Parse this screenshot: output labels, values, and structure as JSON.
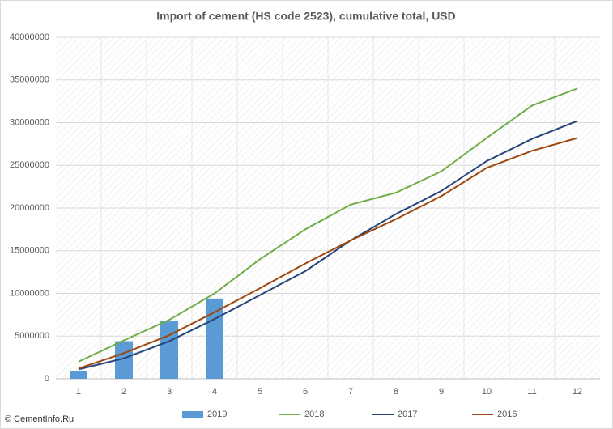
{
  "chart_data": {
    "type": "combo",
    "title": "Import of cement (HS code 2523), cumulative total, USD",
    "watermark": "© CementInfo.Ru",
    "categories": [
      "1",
      "2",
      "3",
      "4",
      "5",
      "6",
      "7",
      "8",
      "9",
      "10",
      "11",
      "12"
    ],
    "ylim": [
      0,
      40000000
    ],
    "yticks": [
      0,
      5000000,
      10000000,
      15000000,
      20000000,
      25000000,
      30000000,
      35000000,
      40000000
    ],
    "grid": true,
    "legend": "bottom",
    "series": [
      {
        "name": "2019",
        "type": "bar",
        "color": "#5b9bd5",
        "values": [
          950000,
          4400000,
          6800000,
          9400000,
          null,
          null,
          null,
          null,
          null,
          null,
          null,
          null
        ]
      },
      {
        "name": "2018",
        "type": "line",
        "color": "#70ad47",
        "values": [
          2000000,
          4500000,
          6900000,
          10000000,
          14000000,
          17500000,
          20400000,
          21800000,
          24300000,
          28200000,
          32000000,
          34000000
        ]
      },
      {
        "name": "2017",
        "type": "line",
        "color": "#264478",
        "values": [
          1100000,
          2400000,
          4400000,
          7000000,
          9800000,
          12600000,
          16200000,
          19300000,
          22000000,
          25500000,
          28100000,
          30200000
        ]
      },
      {
        "name": "2016",
        "type": "line",
        "color": "#9e480e",
        "values": [
          1200000,
          3000000,
          5100000,
          7800000,
          10600000,
          13500000,
          16200000,
          18700000,
          21400000,
          24700000,
          26700000,
          28200000
        ]
      }
    ]
  }
}
